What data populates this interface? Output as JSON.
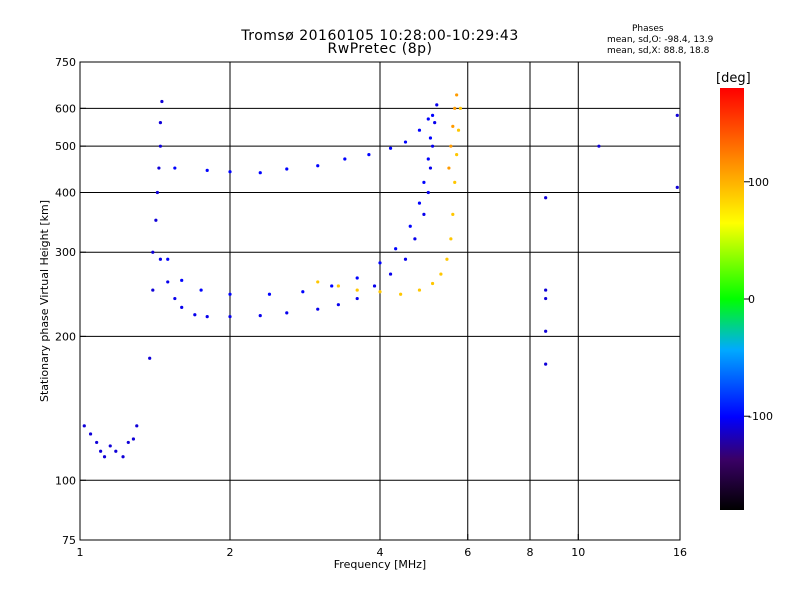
{
  "chart_data": {
    "type": "scatter",
    "title_line1": "Tromsø 20160105 10:28:00-10:29:43",
    "title_line2": "RwPretec (8p)",
    "info": {
      "heading": "Phases",
      "line_o": "mean, sd,O: -98.4, 13.9",
      "line_x": "mean, sd,X:  88.8, 18.8"
    },
    "xlabel": "Frequency [MHz]",
    "ylabel": "Stationary phase Virtual Height [km]",
    "x_scale": "log",
    "y_scale": "log",
    "xlim": [
      1,
      16
    ],
    "ylim": [
      75,
      750
    ],
    "x_ticks": [
      1,
      2,
      4,
      6,
      8,
      10,
      16
    ],
    "x_tick_labels": [
      "1",
      "2",
      "4",
      "6",
      "8",
      "10",
      "16"
    ],
    "y_ticks": [
      75,
      100,
      200,
      300,
      400,
      500,
      600,
      750
    ],
    "y_tick_labels": [
      "75",
      "100",
      "200",
      "300",
      "400",
      "500",
      "600",
      "750"
    ],
    "x_gridlines": [
      2,
      4,
      6,
      8,
      10
    ],
    "y_gridlines": [
      100,
      200,
      300,
      400,
      500,
      600
    ],
    "colorbar": {
      "label": "[deg]",
      "range": [
        -180,
        180
      ],
      "ticks": [
        100,
        0,
        -100
      ],
      "tick_labels": [
        "100",
        "0",
        "-100"
      ]
    },
    "series": [
      {
        "trace": "low E-region echoes",
        "color_phase": -110,
        "points": [
          [
            1.02,
            130
          ],
          [
            1.05,
            125
          ],
          [
            1.08,
            120
          ],
          [
            1.1,
            115
          ],
          [
            1.12,
            112
          ],
          [
            1.15,
            118
          ],
          [
            1.18,
            115
          ],
          [
            1.22,
            112
          ],
          [
            1.25,
            120
          ],
          [
            1.28,
            122
          ],
          [
            1.3,
            130
          ]
        ]
      },
      {
        "trace": "lower O-mode trace",
        "color_phase": -105,
        "points": [
          [
            1.45,
            290
          ],
          [
            1.5,
            260
          ],
          [
            1.55,
            240
          ],
          [
            1.6,
            230
          ],
          [
            1.7,
            222
          ],
          [
            1.8,
            220
          ],
          [
            2.0,
            220
          ],
          [
            2.3,
            221
          ],
          [
            2.6,
            224
          ],
          [
            3.0,
            228
          ],
          [
            3.3,
            233
          ],
          [
            3.6,
            240
          ],
          [
            3.9,
            255
          ],
          [
            4.2,
            270
          ],
          [
            4.5,
            290
          ],
          [
            4.7,
            320
          ],
          [
            4.9,
            360
          ],
          [
            5.0,
            400
          ],
          [
            5.05,
            450
          ],
          [
            5.1,
            500
          ],
          [
            5.15,
            560
          ],
          [
            5.2,
            610
          ]
        ]
      },
      {
        "trace": "middle O-mode trace",
        "color_phase": -100,
        "points": [
          [
            1.5,
            290
          ],
          [
            1.6,
            262
          ],
          [
            1.75,
            250
          ],
          [
            2.0,
            245
          ],
          [
            2.4,
            245
          ],
          [
            2.8,
            248
          ],
          [
            3.2,
            255
          ],
          [
            3.6,
            265
          ],
          [
            4.0,
            285
          ],
          [
            4.3,
            305
          ],
          [
            4.6,
            340
          ],
          [
            4.8,
            380
          ],
          [
            4.9,
            420
          ],
          [
            5.0,
            470
          ],
          [
            5.05,
            520
          ],
          [
            5.1,
            580
          ]
        ]
      },
      {
        "trace": "X-mode trace",
        "color_phase": 90,
        "points": [
          [
            3.0,
            260
          ],
          [
            3.3,
            255
          ],
          [
            3.6,
            250
          ],
          [
            4.0,
            248
          ],
          [
            4.4,
            245
          ],
          [
            4.8,
            250
          ],
          [
            5.1,
            258
          ],
          [
            5.3,
            270
          ],
          [
            5.45,
            290
          ],
          [
            5.55,
            320
          ],
          [
            5.6,
            360
          ],
          [
            5.65,
            420
          ],
          [
            5.7,
            480
          ],
          [
            5.75,
            540
          ],
          [
            5.8,
            600
          ]
        ]
      },
      {
        "trace": "upper multi-hop trace",
        "color_phase": -100,
        "points": [
          [
            1.55,
            450
          ],
          [
            1.8,
            445
          ],
          [
            2.0,
            442
          ],
          [
            2.3,
            440
          ],
          [
            2.6,
            448
          ],
          [
            3.0,
            455
          ],
          [
            3.4,
            470
          ],
          [
            3.8,
            480
          ],
          [
            4.2,
            495
          ],
          [
            4.5,
            510
          ],
          [
            4.8,
            540
          ],
          [
            5.0,
            570
          ]
        ]
      },
      {
        "trace": "vertical column near 1.4 MHz",
        "color_phase": -110,
        "points": [
          [
            1.38,
            180
          ],
          [
            1.4,
            250
          ],
          [
            1.4,
            300
          ],
          [
            1.42,
            350
          ],
          [
            1.43,
            400
          ],
          [
            1.44,
            450
          ],
          [
            1.45,
            500
          ],
          [
            1.45,
            560
          ],
          [
            1.46,
            620
          ]
        ]
      },
      {
        "trace": "X-mode cluster at 5.6 MHz",
        "color_phase": 110,
        "points": [
          [
            5.5,
            450
          ],
          [
            5.55,
            500
          ],
          [
            5.6,
            550
          ],
          [
            5.65,
            600
          ],
          [
            5.7,
            640
          ]
        ]
      },
      {
        "trace": "isolated high-frequency echoes",
        "color_phase": -110,
        "points": [
          [
            8.6,
            390
          ],
          [
            8.6,
            250
          ],
          [
            8.6,
            240
          ],
          [
            8.6,
            205
          ],
          [
            8.6,
            175
          ],
          [
            11.0,
            500
          ],
          [
            15.8,
            580
          ],
          [
            15.8,
            410
          ]
        ]
      }
    ]
  }
}
